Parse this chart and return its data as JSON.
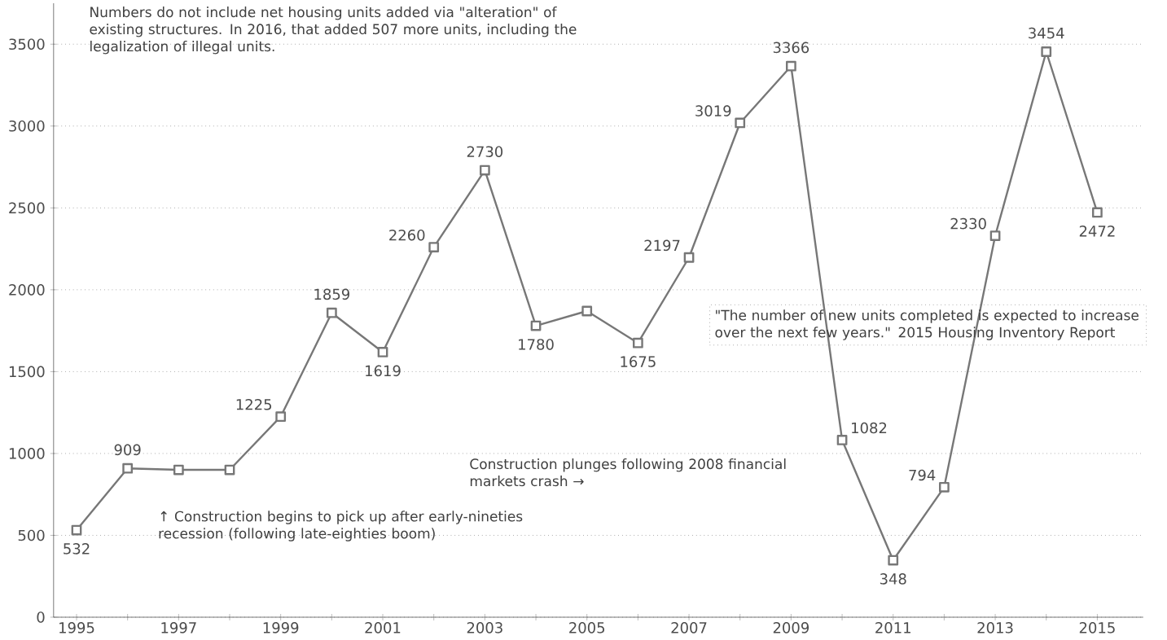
{
  "chart_data": {
    "type": "line",
    "categories": [
      "1995",
      null,
      "1997",
      null,
      "1999",
      null,
      "2001",
      null,
      "2003",
      null,
      "2005",
      null,
      "2007",
      null,
      "2009",
      null,
      "2011",
      null,
      "2013",
      null,
      "2015"
    ],
    "values": [
      532,
      909,
      900,
      900,
      1225,
      1859,
      1619,
      2260,
      2730,
      1780,
      1870,
      1675,
      2197,
      3019,
      3366,
      1082,
      348,
      794,
      2330,
      3454,
      2472
    ],
    "value_labels": [
      "532",
      "909",
      null,
      null,
      "1225",
      "1859",
      "1619",
      "2260",
      "2730",
      "1780",
      null,
      "1675",
      "2197",
      "3019",
      "3366",
      "1082",
      "348",
      "794",
      "2330",
      "3454",
      "2472"
    ],
    "color": "#777777",
    "ylim": [
      0,
      3750
    ],
    "yticks": [
      0,
      500,
      1000,
      1500,
      2000,
      2500,
      3000,
      3500
    ],
    "grid": "y",
    "marker": "square",
    "line_style": "solid",
    "annotations": [
      "Numbers do not include net housing units added via \"alteration\" of existing structures. In 2016, that added 507 more units, including the legalization of illegal units.",
      "↑ Construction begins to pick up after early-nineties recession (following late-eighties boom)",
      "Construction plunges following 2008 financial markets crash →",
      "\"The number of new units completed is expected to increase over the next few years.\" 2015 Housing Inventory Report"
    ]
  }
}
